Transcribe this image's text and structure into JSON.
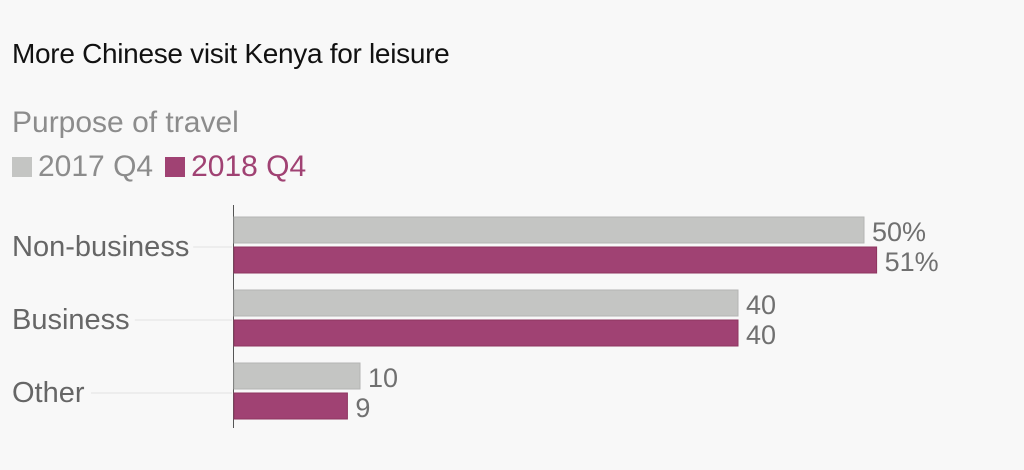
{
  "colors": {
    "series_2017": "#c4c5c3",
    "series_2018": "#a04273",
    "text_dark": "#111111",
    "text_gray": "#8c8c8c",
    "value_label": "#707070"
  },
  "chart_data": {
    "type": "bar",
    "orientation": "horizontal",
    "title": "More Chinese visit Kenya for leisure",
    "subtitle": "Purpose of travel",
    "categories": [
      "Non-business",
      "Business",
      "Other"
    ],
    "series": [
      {
        "name": "2017 Q4",
        "values": [
          50,
          40,
          10
        ],
        "labels": [
          "50%",
          "40",
          "10"
        ]
      },
      {
        "name": "2018 Q4",
        "values": [
          51,
          40,
          9
        ],
        "labels": [
          "51%",
          "40",
          "9"
        ]
      }
    ],
    "xlim": [
      0,
      51
    ],
    "grid": false,
    "legend_position": "top-left"
  }
}
